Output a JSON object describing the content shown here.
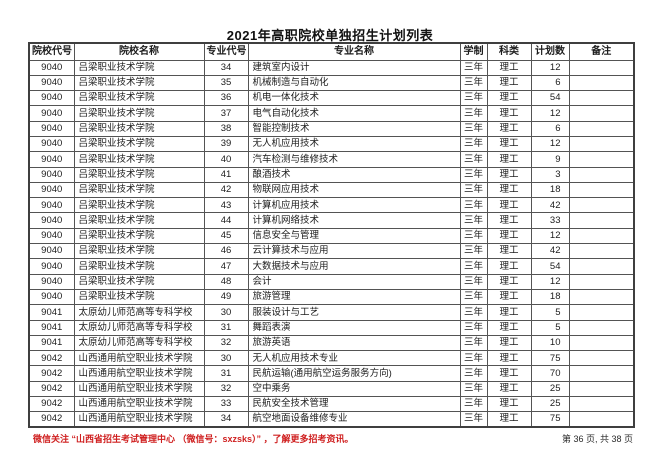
{
  "page": {
    "title": "2021年高职院校单独招生计划列表",
    "footer_notice": "微信关注 “山西省招生考试管理中心 （微信号：sxzsks）” ，了解更多招考资讯。",
    "page_indicator": "第 36 页, 共 38 页"
  },
  "colors": {
    "notice_red": "#cf1f1f",
    "border_gray": "#545454",
    "text": "#1c1c1c",
    "background": "#ffffff"
  },
  "table": {
    "headers": [
      "院校代号",
      "院校名称",
      "专业代号",
      "专业名称",
      "学制",
      "科类",
      "计划数",
      "备注"
    ],
    "rows": [
      [
        "9040",
        "吕梁职业技术学院",
        "34",
        "建筑室内设计",
        "三年",
        "理工",
        "12",
        ""
      ],
      [
        "9040",
        "吕梁职业技术学院",
        "35",
        "机械制造与自动化",
        "三年",
        "理工",
        "6",
        ""
      ],
      [
        "9040",
        "吕梁职业技术学院",
        "36",
        "机电一体化技术",
        "三年",
        "理工",
        "54",
        ""
      ],
      [
        "9040",
        "吕梁职业技术学院",
        "37",
        "电气自动化技术",
        "三年",
        "理工",
        "12",
        ""
      ],
      [
        "9040",
        "吕梁职业技术学院",
        "38",
        "智能控制技术",
        "三年",
        "理工",
        "6",
        ""
      ],
      [
        "9040",
        "吕梁职业技术学院",
        "39",
        "无人机应用技术",
        "三年",
        "理工",
        "12",
        ""
      ],
      [
        "9040",
        "吕梁职业技术学院",
        "40",
        "汽车检测与维修技术",
        "三年",
        "理工",
        "9",
        ""
      ],
      [
        "9040",
        "吕梁职业技术学院",
        "41",
        "酿酒技术",
        "三年",
        "理工",
        "3",
        ""
      ],
      [
        "9040",
        "吕梁职业技术学院",
        "42",
        "物联网应用技术",
        "三年",
        "理工",
        "18",
        ""
      ],
      [
        "9040",
        "吕梁职业技术学院",
        "43",
        "计算机应用技术",
        "三年",
        "理工",
        "42",
        ""
      ],
      [
        "9040",
        "吕梁职业技术学院",
        "44",
        "计算机网络技术",
        "三年",
        "理工",
        "33",
        ""
      ],
      [
        "9040",
        "吕梁职业技术学院",
        "45",
        "信息安全与管理",
        "三年",
        "理工",
        "12",
        ""
      ],
      [
        "9040",
        "吕梁职业技术学院",
        "46",
        "云计算技术与应用",
        "三年",
        "理工",
        "42",
        ""
      ],
      [
        "9040",
        "吕梁职业技术学院",
        "47",
        "大数据技术与应用",
        "三年",
        "理工",
        "54",
        ""
      ],
      [
        "9040",
        "吕梁职业技术学院",
        "48",
        "会计",
        "三年",
        "理工",
        "12",
        ""
      ],
      [
        "9040",
        "吕梁职业技术学院",
        "49",
        "旅游管理",
        "三年",
        "理工",
        "18",
        ""
      ],
      [
        "9041",
        "太原幼儿师范高等专科学校",
        "30",
        "服装设计与工艺",
        "三年",
        "理工",
        "5",
        ""
      ],
      [
        "9041",
        "太原幼儿师范高等专科学校",
        "31",
        "舞蹈表演",
        "三年",
        "理工",
        "5",
        ""
      ],
      [
        "9041",
        "太原幼儿师范高等专科学校",
        "32",
        "旅游英语",
        "三年",
        "理工",
        "10",
        ""
      ],
      [
        "9042",
        "山西通用航空职业技术学院",
        "30",
        "无人机应用技术专业",
        "三年",
        "理工",
        "75",
        ""
      ],
      [
        "9042",
        "山西通用航空职业技术学院",
        "31",
        "民航运输(通用航空运务服务方向)",
        "三年",
        "理工",
        "70",
        ""
      ],
      [
        "9042",
        "山西通用航空职业技术学院",
        "32",
        "空中乘务",
        "三年",
        "理工",
        "25",
        ""
      ],
      [
        "9042",
        "山西通用航空职业技术学院",
        "33",
        "民航安全技术管理",
        "三年",
        "理工",
        "25",
        ""
      ],
      [
        "9042",
        "山西通用航空职业技术学院",
        "34",
        "航空地面设备维修专业",
        "三年",
        "理工",
        "75",
        ""
      ]
    ]
  }
}
